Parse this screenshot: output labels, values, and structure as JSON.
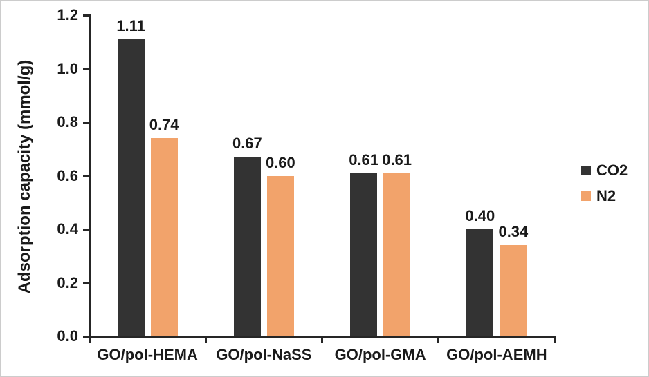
{
  "figure": {
    "background": "#ffffff",
    "border_color": "#cccccc",
    "axis_color": "#262626",
    "text_color": "#1a1a1a"
  },
  "chart_data": {
    "type": "bar",
    "title": "",
    "xlabel": "",
    "ylabel": "Adsorption capacity (mmol/g)",
    "categories": [
      "GO/pol-HEMA",
      "GO/pol-NaSS",
      "GO/pol-GMA",
      "GO/pol-AEMH"
    ],
    "series": [
      {
        "name": "CO2",
        "color": "#333333",
        "values": [
          1.11,
          0.67,
          0.61,
          0.4
        ],
        "labels": [
          "1.11",
          "0.67",
          "0.61",
          "0.40"
        ]
      },
      {
        "name": "N2",
        "color": "#F2A36B",
        "values": [
          0.74,
          0.6,
          0.61,
          0.34
        ],
        "labels": [
          "0.74",
          "0.60",
          "0.61",
          "0.34"
        ]
      }
    ],
    "ylim": [
      0,
      1.2
    ],
    "ytick_labels": [
      "0.0",
      "0.2",
      "0.4",
      "0.6",
      "0.8",
      "1.0",
      "1.2"
    ],
    "grid": false,
    "legend_position": "right",
    "value_labels_shown": true
  }
}
